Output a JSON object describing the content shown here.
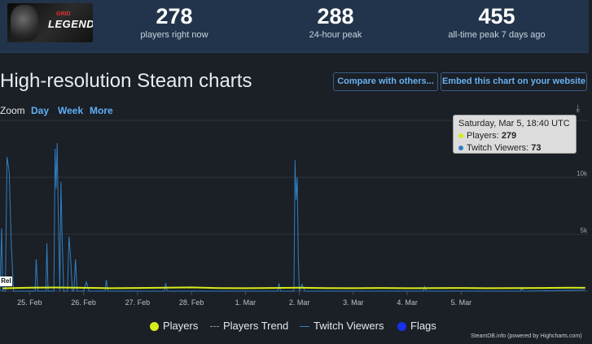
{
  "stats": {
    "logo_text": "LEGENDS",
    "logo_sub": "GRID",
    "players_now": {
      "value": "278",
      "label": "players right now"
    },
    "peak_24h": {
      "value": "288",
      "label": "24-hour peak"
    },
    "peak_all_time": {
      "value": "455",
      "label": "all-time peak 7 days ago"
    }
  },
  "header": {
    "title": "High-resolution Steam charts",
    "compare_label": "Compare with others...",
    "embed_label": "Embed this chart on your website"
  },
  "zoom": {
    "label": "Zoom",
    "options": [
      "Day",
      "Week",
      "More"
    ]
  },
  "tooltip": {
    "date": "Saturday, Mar 5, 18:40 UTC",
    "players_label": "Players:",
    "players_value": "279",
    "twitch_label": "Twitch Viewers:",
    "twitch_value": "73"
  },
  "legend": {
    "items": [
      "Players",
      "Players Trend",
      "Twitch Viewers",
      "Flags"
    ]
  },
  "flag_badge": "Rel",
  "credit": "SteamDB.info (powered by Highcharts.com)",
  "colors": {
    "players": "#d7ec1c",
    "twitch": "#2f7fc1",
    "flags": "#1431e8",
    "accent": "#67b1f1"
  },
  "chart_data": {
    "type": "line",
    "x_ticks": [
      "25. Feb",
      "26. Feb",
      "27. Feb",
      "28. Feb",
      "1. Mar",
      "2. Mar",
      "3. Mar",
      "4. Mar",
      "5. Mar"
    ],
    "y_ticks": [
      "5k",
      "10k"
    ],
    "series": [
      {
        "name": "Players",
        "points": [
          [
            24.5,
            250
          ],
          [
            25.0,
            300
          ],
          [
            25.5,
            320
          ],
          [
            26.0,
            290
          ],
          [
            26.5,
            260
          ],
          [
            27.0,
            280
          ],
          [
            27.5,
            300
          ],
          [
            28.0,
            330
          ],
          [
            28.5,
            270
          ],
          [
            29.0,
            260
          ],
          [
            29.5,
            280
          ],
          [
            30.0,
            300
          ],
          [
            30.5,
            270
          ],
          [
            31.0,
            260
          ],
          [
            31.5,
            280
          ],
          [
            32.0,
            260
          ],
          [
            32.5,
            270
          ],
          [
            33.0,
            280
          ],
          [
            33.5,
            260
          ],
          [
            34.0,
            270
          ],
          [
            34.5,
            280
          ],
          [
            35.0,
            300
          ],
          [
            35.3,
            290
          ]
        ]
      },
      {
        "name": "Players Trend",
        "points": [
          [
            24.5,
            280
          ],
          [
            35.3,
            280
          ]
        ]
      },
      {
        "name": "Twitch Viewers",
        "points": [
          [
            24.45,
            0
          ],
          [
            24.48,
            5500
          ],
          [
            24.5,
            0
          ],
          [
            24.55,
            0
          ],
          [
            24.58,
            11800
          ],
          [
            24.62,
            10500
          ],
          [
            24.66,
            4000
          ],
          [
            24.7,
            0
          ],
          [
            25.1,
            0
          ],
          [
            25.12,
            2800
          ],
          [
            25.15,
            0
          ],
          [
            25.3,
            0
          ],
          [
            25.32,
            4200
          ],
          [
            25.34,
            0
          ],
          [
            25.45,
            0
          ],
          [
            25.47,
            12500
          ],
          [
            25.49,
            9000
          ],
          [
            25.51,
            13000
          ],
          [
            25.53,
            7000
          ],
          [
            25.56,
            0
          ],
          [
            25.58,
            9600
          ],
          [
            25.6,
            5000
          ],
          [
            25.63,
            0
          ],
          [
            25.7,
            0
          ],
          [
            25.73,
            4800
          ],
          [
            25.76,
            2800
          ],
          [
            25.79,
            0
          ],
          [
            25.82,
            0
          ],
          [
            25.85,
            2800
          ],
          [
            25.88,
            0
          ],
          [
            26.0,
            0
          ],
          [
            26.05,
            800
          ],
          [
            26.1,
            0
          ],
          [
            26.4,
            0
          ],
          [
            26.42,
            1000
          ],
          [
            26.45,
            0
          ],
          [
            27.5,
            0
          ],
          [
            27.52,
            700
          ],
          [
            27.55,
            0
          ],
          [
            29.6,
            0
          ],
          [
            29.62,
            700
          ],
          [
            29.65,
            0
          ],
          [
            29.9,
            0
          ],
          [
            29.92,
            11500
          ],
          [
            29.94,
            8000
          ],
          [
            29.96,
            10000
          ],
          [
            29.98,
            3000
          ],
          [
            30.0,
            0
          ],
          [
            30.05,
            600
          ],
          [
            30.1,
            0
          ],
          [
            32.3,
            0
          ],
          [
            32.32,
            400
          ],
          [
            32.35,
            0
          ],
          [
            34.1,
            0
          ],
          [
            34.12,
            300
          ],
          [
            34.15,
            0
          ],
          [
            35.0,
            73
          ],
          [
            35.3,
            90
          ]
        ]
      }
    ],
    "y_range": [
      0,
      15000
    ],
    "x_range": [
      24.45,
      35.35
    ]
  }
}
